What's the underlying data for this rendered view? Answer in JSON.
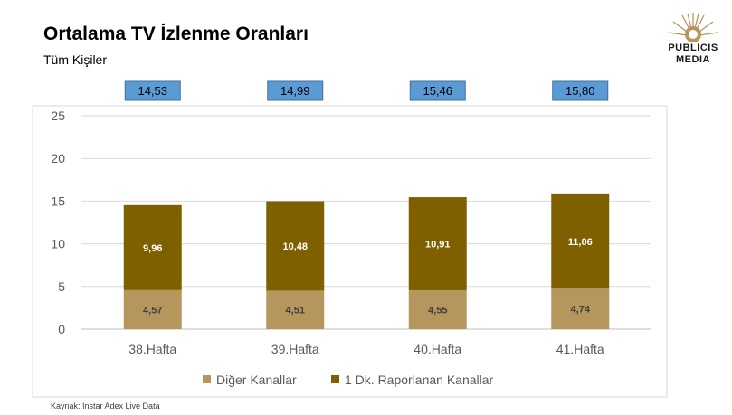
{
  "header": {
    "title": "Ortalama TV İzlenme Oranları",
    "subtitle": "Tüm Kişiler"
  },
  "logo": {
    "line1": "PUBLICIS",
    "line2": "MEDIA"
  },
  "footer": {
    "source": "Kaynak: Instar  Adex Live Data"
  },
  "colors": {
    "other_channels": "#B5975E",
    "reported_channels": "#7F6000",
    "total_box": "#5B9BD5",
    "total_box_border": "#41719C"
  },
  "chart_data": {
    "type": "bar",
    "stacked": true,
    "categories": [
      "38.Hafta",
      "39.Hafta",
      "40.Hafta",
      "41.Hafta"
    ],
    "series": [
      {
        "name": "Diğer Kanallar",
        "values": [
          4.57,
          4.51,
          4.55,
          4.74
        ],
        "labels": [
          "4,57",
          "4,51",
          "4,55",
          "4,74"
        ]
      },
      {
        "name": "1 Dk. Raporlanan Kanallar",
        "values": [
          9.96,
          10.48,
          10.91,
          11.06
        ],
        "labels": [
          "9,96",
          "10,48",
          "10,91",
          "11,06"
        ]
      }
    ],
    "totals": [
      14.53,
      14.99,
      15.46,
      15.8
    ],
    "total_labels": [
      "14,53",
      "14,99",
      "15,46",
      "15,80"
    ],
    "ylim": [
      0,
      25
    ],
    "yticks": [
      "0",
      "5",
      "10",
      "15",
      "20",
      "25"
    ],
    "grid": true,
    "legend": "bottom"
  }
}
